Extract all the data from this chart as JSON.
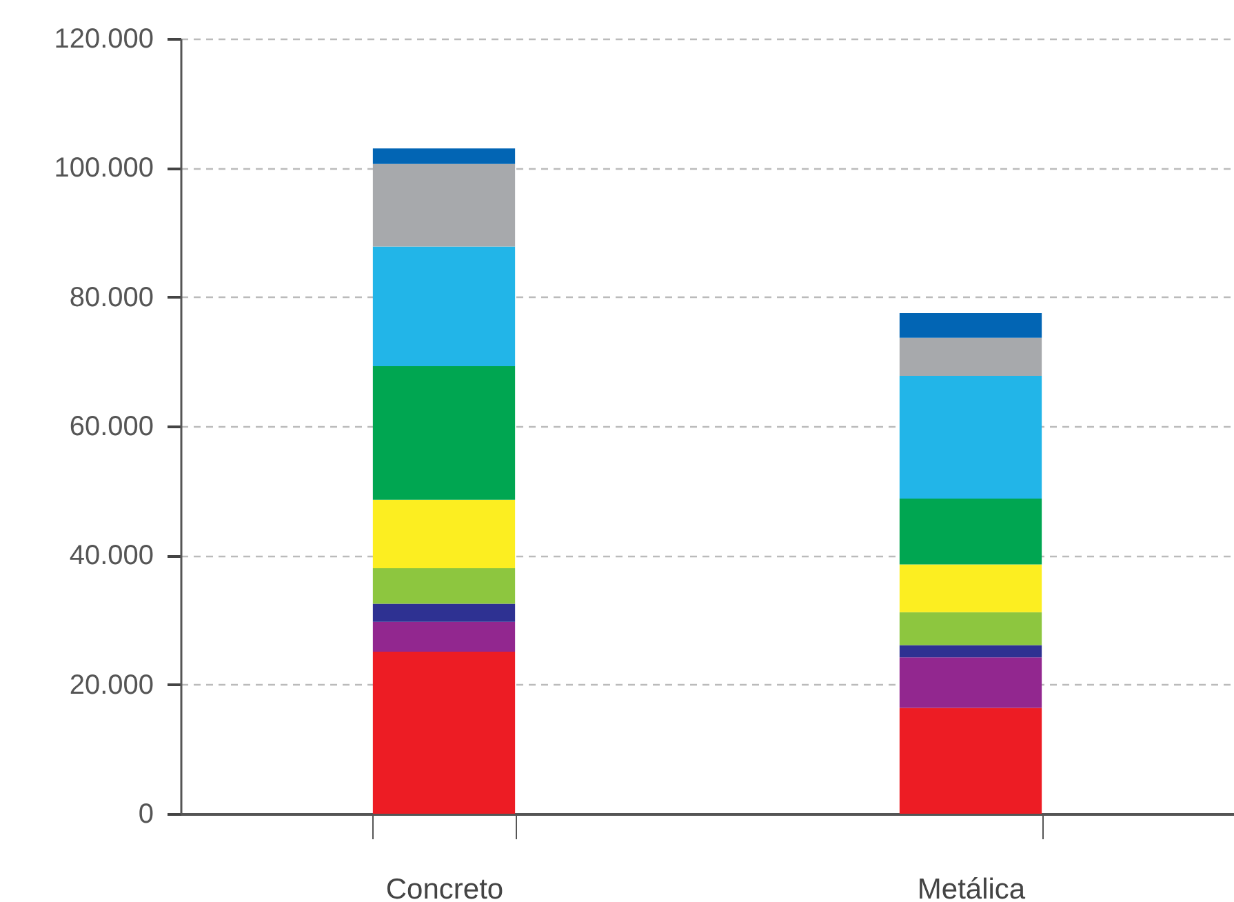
{
  "chart_data": {
    "type": "bar",
    "stacked": true,
    "categories": [
      "Concreto",
      "Metálica"
    ],
    "series": [
      {
        "color": "#ed1c24",
        "values": [
          25100,
          16400
        ]
      },
      {
        "color": "#92278f",
        "values": [
          4600,
          7800
        ]
      },
      {
        "color": "#2e3192",
        "values": [
          2800,
          1900
        ]
      },
      {
        "color": "#8dc63f",
        "values": [
          5500,
          5100
        ]
      },
      {
        "color": "#fcee21",
        "values": [
          10600,
          7400
        ]
      },
      {
        "color": "#00a651",
        "values": [
          20700,
          10200
        ]
      },
      {
        "color": "#22b5e8",
        "values": [
          18500,
          19000
        ]
      },
      {
        "color": "#a7a9ac",
        "values": [
          12800,
          5900
        ]
      },
      {
        "color": "#0265b4",
        "values": [
          2400,
          3800
        ]
      }
    ],
    "ylim": [
      0,
      120000
    ],
    "yticks": [
      {
        "value": 0,
        "label": "0"
      },
      {
        "value": 20000,
        "label": "20.000"
      },
      {
        "value": 40000,
        "label": "40.000"
      },
      {
        "value": 60000,
        "label": "60.000"
      },
      {
        "value": 80000,
        "label": "80.000"
      },
      {
        "value": 100000,
        "label": "100.000"
      },
      {
        "value": 120000,
        "label": "120.000"
      }
    ],
    "grid": "y"
  }
}
